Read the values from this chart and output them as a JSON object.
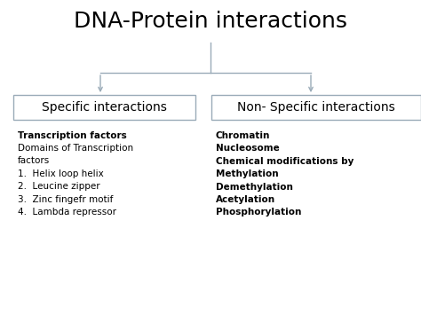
{
  "title": "DNA-Protein interactions",
  "title_fontsize": 18,
  "title_fontweight": "normal",
  "bg_color": "#ffffff",
  "box_left_label": "Specific interactions",
  "box_right_label": "Non- Specific interactions",
  "box_color": "#ffffff",
  "box_edgecolor": "#9aabb8",
  "left_content_bold": "Transcription factors",
  "left_content_normal": "Domains of Transcription\nfactors\n1.  Helix loop helix\n2.  Leucine zipper\n3.  Zinc fingefr motif\n4.  Lambda repressor",
  "right_content": "Chromatin\nNucleosome\nChemical modifications by\nMethylation\nDemethylation\nAcetylation\nPhosphorylation",
  "connector_color": "#9aabb8",
  "text_color": "#000000",
  "fig_width": 4.74,
  "fig_height": 3.55,
  "dpi": 100
}
